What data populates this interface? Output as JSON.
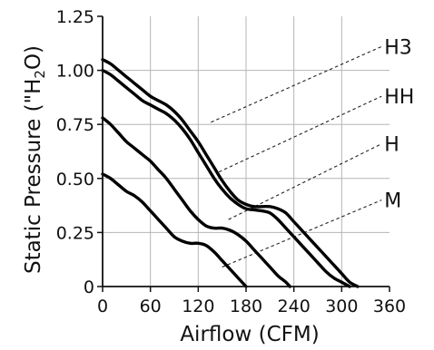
{
  "chart_data": {
    "type": "line",
    "xlabel": "Airflow (CFM)",
    "ylabel": "Static Pressure (\"H2O)",
    "ylabel_parts": {
      "pre": "Static Pressure (\"H",
      "sub": "2",
      "post": "O)"
    },
    "xlim": [
      0,
      360
    ],
    "ylim": [
      0,
      1.25
    ],
    "xticks": [
      "0",
      "60",
      "120",
      "180",
      "240",
      "300",
      "360"
    ],
    "yticks": [
      "0",
      "0.25",
      "0.50",
      "0.75",
      "1.00",
      "1.25"
    ],
    "grid": true,
    "series": [
      {
        "name": "H3",
        "x": [
          0,
          10,
          20,
          30,
          40,
          50,
          60,
          70,
          80,
          90,
          100,
          110,
          120,
          130,
          140,
          150,
          160,
          170,
          180,
          190,
          200,
          210,
          220,
          230,
          240,
          250,
          260,
          270,
          280,
          290,
          300,
          310,
          320
        ],
        "y": [
          1.05,
          1.03,
          1.0,
          0.97,
          0.94,
          0.91,
          0.88,
          0.86,
          0.84,
          0.81,
          0.77,
          0.72,
          0.67,
          0.61,
          0.55,
          0.49,
          0.44,
          0.4,
          0.38,
          0.37,
          0.37,
          0.37,
          0.36,
          0.34,
          0.3,
          0.26,
          0.22,
          0.18,
          0.14,
          0.1,
          0.06,
          0.02,
          0.0
        ]
      },
      {
        "name": "HH",
        "x": [
          0,
          10,
          20,
          30,
          40,
          50,
          60,
          70,
          80,
          90,
          100,
          110,
          120,
          130,
          140,
          150,
          160,
          170,
          180,
          190,
          200,
          210,
          220,
          230,
          240,
          250,
          260,
          270,
          280,
          290,
          300,
          310
        ],
        "y": [
          1.0,
          0.98,
          0.95,
          0.92,
          0.89,
          0.86,
          0.84,
          0.82,
          0.8,
          0.77,
          0.73,
          0.68,
          0.62,
          0.56,
          0.5,
          0.45,
          0.41,
          0.38,
          0.36,
          0.355,
          0.35,
          0.34,
          0.31,
          0.27,
          0.23,
          0.19,
          0.15,
          0.11,
          0.07,
          0.04,
          0.02,
          0.0
        ]
      },
      {
        "name": "H",
        "x": [
          0,
          10,
          20,
          30,
          40,
          50,
          60,
          70,
          80,
          90,
          100,
          110,
          120,
          130,
          140,
          150,
          160,
          170,
          180,
          190,
          200,
          210,
          220,
          230,
          235
        ],
        "y": [
          0.78,
          0.75,
          0.71,
          0.67,
          0.64,
          0.61,
          0.58,
          0.54,
          0.5,
          0.45,
          0.4,
          0.35,
          0.31,
          0.28,
          0.27,
          0.27,
          0.26,
          0.24,
          0.21,
          0.17,
          0.13,
          0.09,
          0.05,
          0.02,
          0.0
        ]
      },
      {
        "name": "M",
        "x": [
          0,
          10,
          20,
          30,
          40,
          50,
          60,
          70,
          80,
          90,
          100,
          110,
          120,
          130,
          140,
          150,
          160,
          170,
          180
        ],
        "y": [
          0.52,
          0.5,
          0.47,
          0.44,
          0.42,
          0.39,
          0.35,
          0.31,
          0.27,
          0.23,
          0.21,
          0.2,
          0.2,
          0.19,
          0.16,
          0.12,
          0.08,
          0.04,
          0.0
        ]
      }
    ],
    "callouts": [
      {
        "series": "H3",
        "from": [
          136,
          0.76
        ],
        "to": [
          350,
          1.11
        ]
      },
      {
        "series": "HH",
        "from": [
          146,
          0.53
        ],
        "to": [
          350,
          0.88
        ]
      },
      {
        "series": "H",
        "from": [
          158,
          0.31
        ],
        "to": [
          350,
          0.66
        ]
      },
      {
        "series": "M",
        "from": [
          150,
          0.09
        ],
        "to": [
          350,
          0.4
        ]
      }
    ]
  }
}
